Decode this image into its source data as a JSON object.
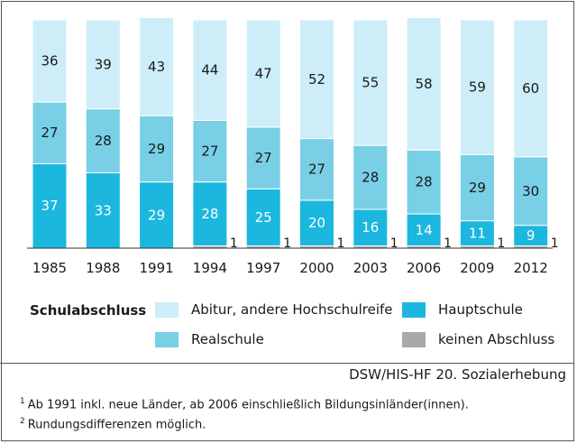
{
  "chart_data": {
    "type": "bar",
    "stacked": true,
    "categories": [
      "1985",
      "1988",
      "1991",
      "1994",
      "1997",
      "2000",
      "2003",
      "2006",
      "2009",
      "2012"
    ],
    "series": [
      {
        "name": "keinen Abschluss",
        "values": [
          0,
          0,
          0,
          1,
          1,
          1,
          1,
          1,
          1,
          1
        ],
        "color": "#a9a9a9"
      },
      {
        "name": "Hauptschule",
        "values": [
          37,
          33,
          29,
          28,
          25,
          20,
          16,
          14,
          11,
          9
        ],
        "color": "#1bb7df"
      },
      {
        "name": "Realschule",
        "values": [
          27,
          28,
          29,
          27,
          27,
          27,
          28,
          28,
          29,
          30
        ],
        "color": "#78cfe6"
      },
      {
        "name": "Abitur, andere Hochschulreife",
        "values": [
          36,
          39,
          43,
          44,
          47,
          52,
          55,
          58,
          59,
          60
        ],
        "color": "#cdeef8"
      }
    ],
    "ylim": [
      0,
      100
    ]
  },
  "legend": {
    "title": "Schulabschluss",
    "items": [
      {
        "label": "Abitur, andere Hochschulreife",
        "color": "#cdeef8"
      },
      {
        "label": "Hauptschule",
        "color": "#1bb7df"
      },
      {
        "label": "Realschule",
        "color": "#78cfe6"
      },
      {
        "label": "keinen Abschluss",
        "color": "#a9a9a9"
      }
    ]
  },
  "source": "DSW/HIS-HF 20. Sozialerhebung",
  "footnotes": [
    {
      "marker": "1",
      "text": "Ab 1991 inkl. neue Länder, ab 2006 einschließlich Bildungsinländer(innen)."
    },
    {
      "marker": "2",
      "text": "Rundungsdifferenzen möglich."
    }
  ]
}
